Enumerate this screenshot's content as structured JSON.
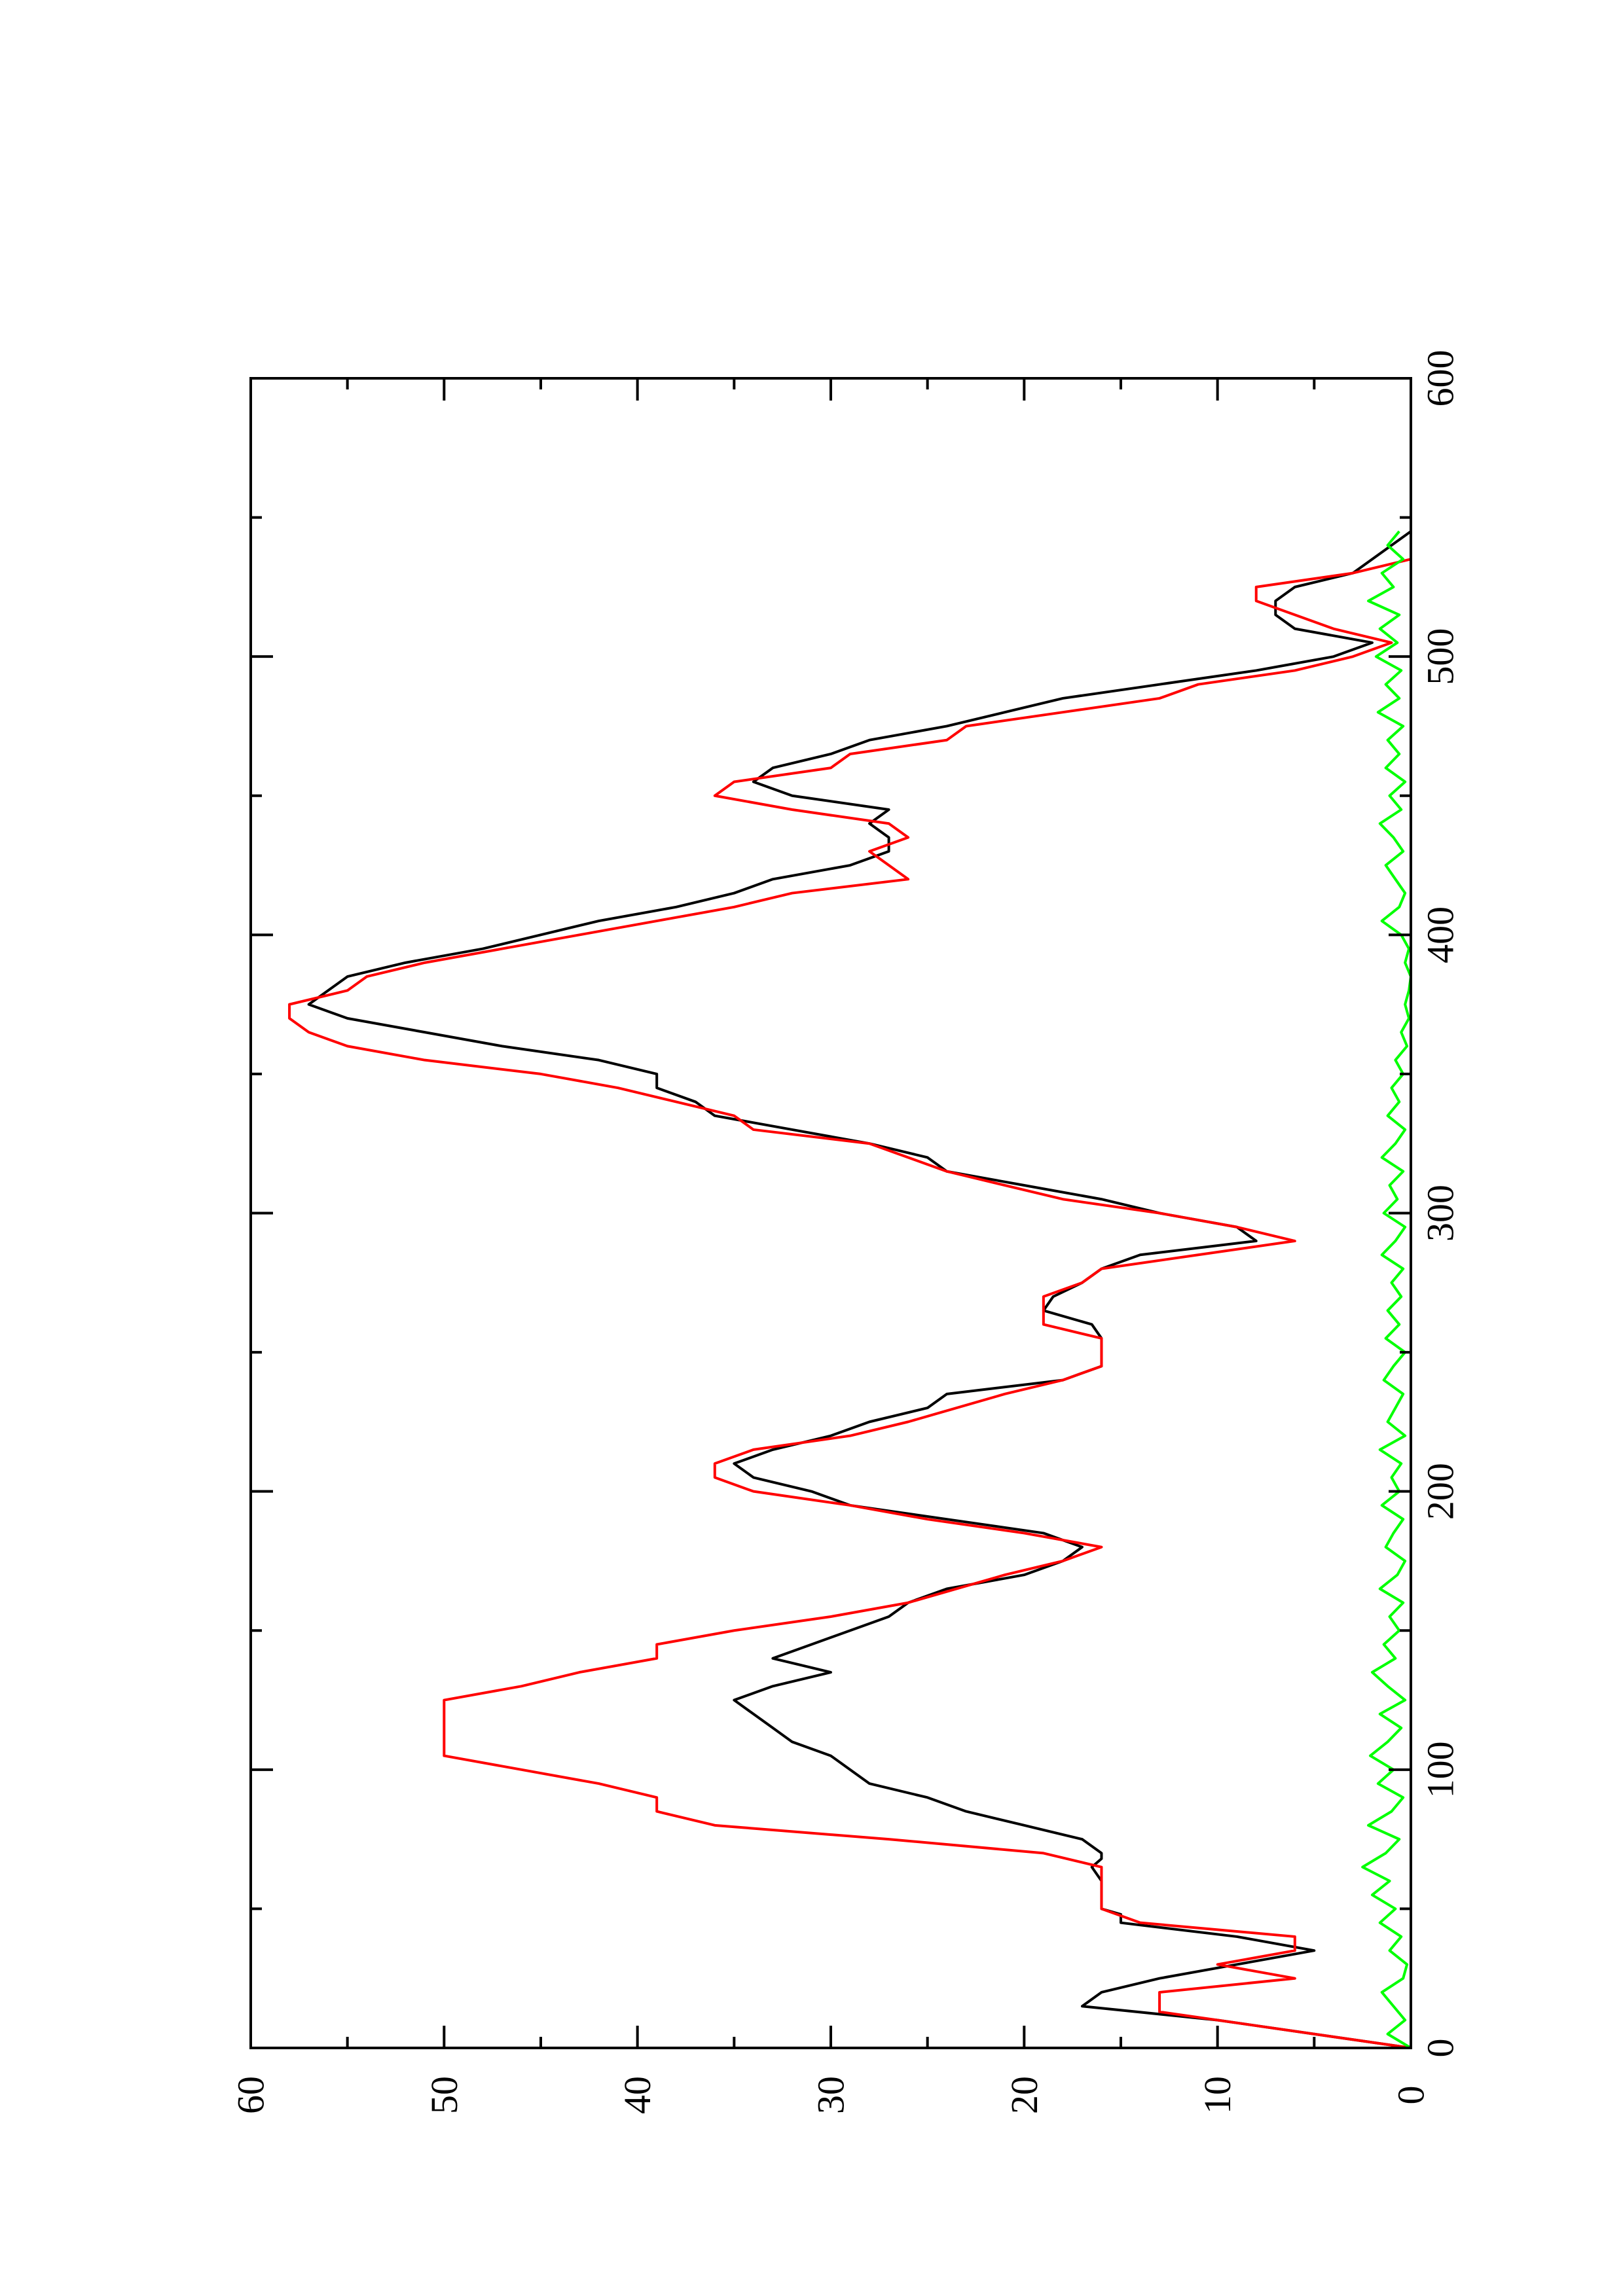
{
  "chart_data": {
    "type": "line",
    "title": "",
    "xlabel": "",
    "ylabel": "",
    "orientation": "rotated-90-ccw",
    "xlim": [
      0,
      600
    ],
    "ylim": [
      0,
      60
    ],
    "x_ticks": [
      0,
      100,
      200,
      300,
      400,
      500,
      600
    ],
    "x_tick_labels": [
      "0",
      "100",
      "200",
      "300",
      "400",
      "500",
      "600"
    ],
    "x_minor_ticks": [
      50,
      150,
      250,
      350,
      450,
      550
    ],
    "y_ticks": [
      0,
      10,
      20,
      30,
      40,
      50,
      60
    ],
    "y_tick_labels": [
      "0",
      "10",
      "20",
      "30",
      "40",
      "50",
      "60"
    ],
    "y_minor_ticks": [
      5,
      15,
      25,
      35,
      45,
      55
    ],
    "grid": false,
    "legend": "none",
    "series": [
      {
        "color": "#000000",
        "points": [
          [
            0,
            0
          ],
          [
            5,
            5
          ],
          [
            10,
            10
          ],
          [
            15,
            17
          ],
          [
            20,
            16
          ],
          [
            25,
            13
          ],
          [
            30,
            9
          ],
          [
            35,
            5
          ],
          [
            40,
            9
          ],
          [
            45,
            15
          ],
          [
            48,
            15
          ],
          [
            50,
            16
          ],
          [
            60,
            16
          ],
          [
            65,
            16.5
          ],
          [
            68,
            16
          ],
          [
            70,
            16
          ],
          [
            75,
            17
          ],
          [
            80,
            20
          ],
          [
            85,
            23
          ],
          [
            90,
            25
          ],
          [
            95,
            28
          ],
          [
            100,
            29
          ],
          [
            105,
            30
          ],
          [
            110,
            32
          ],
          [
            115,
            33
          ],
          [
            120,
            34
          ],
          [
            125,
            35
          ],
          [
            130,
            33
          ],
          [
            135,
            30
          ],
          [
            140,
            33
          ],
          [
            145,
            31
          ],
          [
            150,
            29
          ],
          [
            155,
            27
          ],
          [
            160,
            26
          ],
          [
            165,
            24
          ],
          [
            170,
            20
          ],
          [
            175,
            18
          ],
          [
            180,
            17
          ],
          [
            185,
            19
          ],
          [
            190,
            24
          ],
          [
            195,
            29
          ],
          [
            200,
            31
          ],
          [
            205,
            34
          ],
          [
            210,
            35
          ],
          [
            215,
            33
          ],
          [
            220,
            30
          ],
          [
            225,
            28
          ],
          [
            230,
            25
          ],
          [
            235,
            24
          ],
          [
            240,
            18
          ],
          [
            245,
            16
          ],
          [
            250,
            16
          ],
          [
            255,
            16
          ],
          [
            260,
            16.5
          ],
          [
            265,
            19
          ],
          [
            270,
            18.5
          ],
          [
            275,
            17
          ],
          [
            280,
            16
          ],
          [
            285,
            14
          ],
          [
            290,
            8
          ],
          [
            295,
            9
          ],
          [
            300,
            13
          ],
          [
            305,
            16
          ],
          [
            310,
            20
          ],
          [
            315,
            24
          ],
          [
            320,
            25
          ],
          [
            325,
            28
          ],
          [
            330,
            32
          ],
          [
            335,
            36
          ],
          [
            340,
            37
          ],
          [
            345,
            39
          ],
          [
            350,
            39
          ],
          [
            355,
            42
          ],
          [
            360,
            47
          ],
          [
            365,
            51
          ],
          [
            370,
            55
          ],
          [
            375,
            57
          ],
          [
            380,
            56
          ],
          [
            385,
            55
          ],
          [
            390,
            52
          ],
          [
            395,
            48
          ],
          [
            400,
            45
          ],
          [
            405,
            42
          ],
          [
            410,
            38
          ],
          [
            415,
            35
          ],
          [
            420,
            33
          ],
          [
            425,
            29
          ],
          [
            430,
            27
          ],
          [
            435,
            27
          ],
          [
            440,
            28
          ],
          [
            445,
            27
          ],
          [
            450,
            32
          ],
          [
            455,
            34
          ],
          [
            460,
            33
          ],
          [
            465,
            30
          ],
          [
            470,
            28
          ],
          [
            475,
            24
          ],
          [
            480,
            21
          ],
          [
            485,
            18
          ],
          [
            490,
            13
          ],
          [
            495,
            8
          ],
          [
            500,
            4
          ],
          [
            505,
            2
          ],
          [
            510,
            6
          ],
          [
            515,
            7
          ],
          [
            520,
            7
          ],
          [
            525,
            6
          ],
          [
            530,
            3
          ],
          [
            535,
            2
          ],
          [
            540,
            1
          ],
          [
            545,
            0
          ]
        ]
      },
      {
        "color": "#ff0000",
        "points": [
          [
            0,
            0
          ],
          [
            10,
            10
          ],
          [
            13,
            13
          ],
          [
            20,
            13
          ],
          [
            25,
            6
          ],
          [
            30,
            10
          ],
          [
            35,
            6
          ],
          [
            40,
            6
          ],
          [
            45,
            14
          ],
          [
            50,
            16
          ],
          [
            65,
            16
          ],
          [
            70,
            19
          ],
          [
            75,
            27
          ],
          [
            80,
            36
          ],
          [
            85,
            39
          ],
          [
            90,
            39
          ],
          [
            95,
            42
          ],
          [
            100,
            46
          ],
          [
            105,
            50
          ],
          [
            110,
            50
          ],
          [
            120,
            50
          ],
          [
            125,
            50
          ],
          [
            130,
            46
          ],
          [
            135,
            43
          ],
          [
            140,
            39
          ],
          [
            145,
            39
          ],
          [
            150,
            35
          ],
          [
            155,
            30
          ],
          [
            160,
            26
          ],
          [
            170,
            21
          ],
          [
            175,
            18
          ],
          [
            180,
            16
          ],
          [
            185,
            20
          ],
          [
            190,
            25
          ],
          [
            195,
            29
          ],
          [
            200,
            34
          ],
          [
            205,
            36
          ],
          [
            210,
            36
          ],
          [
            215,
            34
          ],
          [
            220,
            29
          ],
          [
            225,
            26
          ],
          [
            235,
            21
          ],
          [
            240,
            18
          ],
          [
            245,
            16
          ],
          [
            255,
            16
          ],
          [
            260,
            19
          ],
          [
            270,
            19
          ],
          [
            275,
            17
          ],
          [
            280,
            16
          ],
          [
            285,
            11
          ],
          [
            290,
            6
          ],
          [
            295,
            9
          ],
          [
            300,
            13
          ],
          [
            305,
            18
          ],
          [
            315,
            24
          ],
          [
            325,
            28
          ],
          [
            330,
            34
          ],
          [
            335,
            35
          ],
          [
            340,
            38
          ],
          [
            345,
            41
          ],
          [
            350,
            45
          ],
          [
            355,
            51
          ],
          [
            360,
            55
          ],
          [
            365,
            57
          ],
          [
            370,
            58
          ],
          [
            375,
            58
          ],
          [
            380,
            55
          ],
          [
            385,
            54
          ],
          [
            390,
            51
          ],
          [
            395,
            47
          ],
          [
            400,
            43
          ],
          [
            405,
            39
          ],
          [
            410,
            35
          ],
          [
            415,
            32
          ],
          [
            420,
            26
          ],
          [
            425,
            27
          ],
          [
            430,
            28
          ],
          [
            435,
            26
          ],
          [
            440,
            27
          ],
          [
            445,
            32
          ],
          [
            450,
            36
          ],
          [
            455,
            35
          ],
          [
            460,
            30
          ],
          [
            465,
            29
          ],
          [
            470,
            24
          ],
          [
            475,
            23
          ],
          [
            480,
            18
          ],
          [
            485,
            13
          ],
          [
            490,
            11
          ],
          [
            495,
            6
          ],
          [
            500,
            3
          ],
          [
            505,
            1
          ],
          [
            510,
            4
          ],
          [
            515,
            6
          ],
          [
            520,
            8
          ],
          [
            525,
            8
          ],
          [
            530,
            3
          ],
          [
            535,
            0
          ]
        ]
      },
      {
        "color": "#00ff00",
        "points": [
          [
            0,
            0
          ],
          [
            5,
            1.2
          ],
          [
            10,
            0.3
          ],
          [
            15,
            0.9
          ],
          [
            20,
            1.5
          ],
          [
            25,
            0.4
          ],
          [
            30,
            0.2
          ],
          [
            35,
            1.1
          ],
          [
            40,
            0.5
          ],
          [
            45,
            1.6
          ],
          [
            50,
            0.8
          ],
          [
            55,
            2.0
          ],
          [
            60,
            1.1
          ],
          [
            65,
            2.5
          ],
          [
            70,
            1.3
          ],
          [
            75,
            0.6
          ],
          [
            80,
            2.2
          ],
          [
            85,
            1.0
          ],
          [
            90,
            0.4
          ],
          [
            95,
            1.7
          ],
          [
            100,
            0.9
          ],
          [
            105,
            2.1
          ],
          [
            110,
            1.2
          ],
          [
            115,
            0.5
          ],
          [
            120,
            1.6
          ],
          [
            125,
            0.3
          ],
          [
            130,
            1.2
          ],
          [
            135,
            2.0
          ],
          [
            140,
            0.8
          ],
          [
            145,
            1.4
          ],
          [
            150,
            0.6
          ],
          [
            155,
            1.1
          ],
          [
            160,
            0.4
          ],
          [
            165,
            1.6
          ],
          [
            170,
            0.7
          ],
          [
            175,
            0.3
          ],
          [
            180,
            1.3
          ],
          [
            185,
            0.9
          ],
          [
            190,
            0.4
          ],
          [
            195,
            1.5
          ],
          [
            200,
            0.6
          ],
          [
            205,
            1.0
          ],
          [
            210,
            0.5
          ],
          [
            215,
            1.6
          ],
          [
            220,
            0.3
          ],
          [
            225,
            1.2
          ],
          [
            230,
            0.8
          ],
          [
            235,
            0.4
          ],
          [
            240,
            1.4
          ],
          [
            245,
            0.9
          ],
          [
            250,
            0.3
          ],
          [
            255,
            1.3
          ],
          [
            260,
            0.6
          ],
          [
            265,
            1.2
          ],
          [
            270,
            0.5
          ],
          [
            275,
            1.0
          ],
          [
            280,
            0.4
          ],
          [
            285,
            1.5
          ],
          [
            290,
            0.8
          ],
          [
            295,
            0.3
          ],
          [
            300,
            1.4
          ],
          [
            305,
            0.7
          ],
          [
            310,
            1.1
          ],
          [
            315,
            0.4
          ],
          [
            320,
            1.5
          ],
          [
            325,
            0.8
          ],
          [
            330,
            0.3
          ],
          [
            335,
            1.2
          ],
          [
            340,
            0.6
          ],
          [
            345,
            1.0
          ],
          [
            350,
            0.4
          ],
          [
            355,
            0.8
          ],
          [
            360,
            0.2
          ],
          [
            365,
            0.5
          ],
          [
            370,
            0.1
          ],
          [
            375,
            0.3
          ],
          [
            380,
            0.1
          ],
          [
            385,
            0.0
          ],
          [
            390,
            0.3
          ],
          [
            395,
            0.1
          ],
          [
            400,
            0.5
          ],
          [
            405,
            1.5
          ],
          [
            410,
            0.6
          ],
          [
            415,
            0.3
          ],
          [
            420,
            0.8
          ],
          [
            425,
            1.3
          ],
          [
            430,
            0.4
          ],
          [
            435,
            0.9
          ],
          [
            440,
            1.6
          ],
          [
            445,
            0.5
          ],
          [
            450,
            1.1
          ],
          [
            455,
            0.3
          ],
          [
            460,
            1.3
          ],
          [
            465,
            0.6
          ],
          [
            470,
            1.2
          ],
          [
            475,
            0.4
          ],
          [
            480,
            1.7
          ],
          [
            485,
            0.6
          ],
          [
            490,
            1.3
          ],
          [
            495,
            0.5
          ],
          [
            500,
            1.8
          ],
          [
            505,
            0.7
          ],
          [
            510,
            1.6
          ],
          [
            515,
            0.6
          ],
          [
            520,
            2.2
          ],
          [
            525,
            0.9
          ],
          [
            530,
            1.5
          ],
          [
            535,
            0.4
          ],
          [
            540,
            1.2
          ],
          [
            545,
            0.6
          ]
        ]
      }
    ]
  }
}
